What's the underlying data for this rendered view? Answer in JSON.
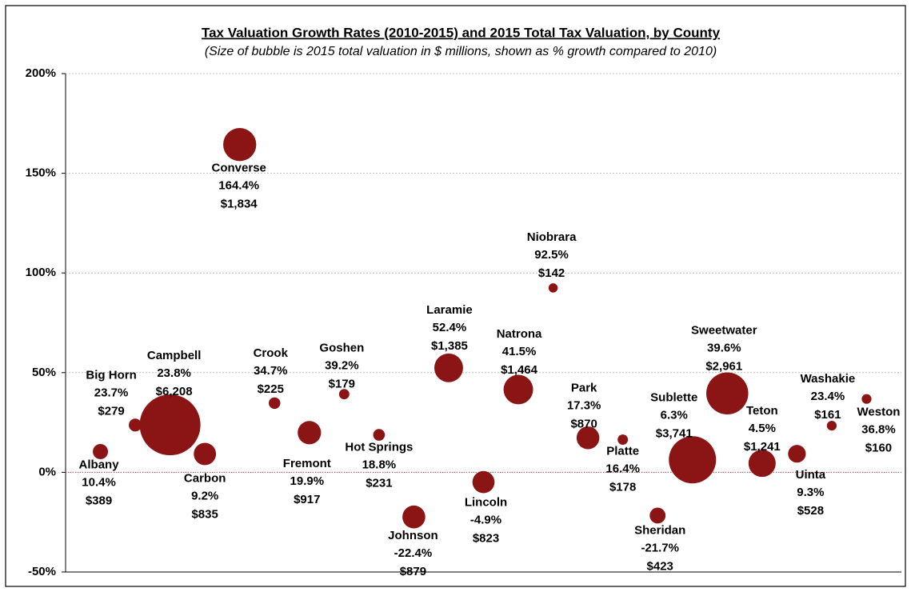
{
  "chart_data": {
    "type": "bubble",
    "title": "Tax Valuation Growth Rates (2010-2015) and 2015 Total Tax Valuation, by County",
    "subtitle": "(Size of bubble is 2015 total valuation in $ millions, shown as % growth compared to 2010)",
    "categories": [
      "Albany",
      "Big Horn",
      "Campbell",
      "Carbon",
      "Converse",
      "Crook",
      "Fremont",
      "Goshen",
      "Hot Springs",
      "Johnson",
      "Laramie",
      "Lincoln",
      "Natrona",
      "Niobrara",
      "Park",
      "Platte",
      "Sheridan",
      "Sublette",
      "Sweetwater",
      "Teton",
      "Uinta",
      "Washakie",
      "Weston"
    ],
    "values": [
      10.4,
      23.7,
      23.8,
      9.2,
      164.4,
      34.7,
      19.9,
      39.2,
      18.8,
      -22.4,
      52.4,
      -4.9,
      41.5,
      92.5,
      17.3,
      16.4,
      -21.7,
      6.3,
      39.6,
      4.5,
      9.3,
      23.4,
      36.8
    ],
    "value_labels": [
      "10.4%",
      "23.7%",
      "23.8%",
      "9.2%",
      "164.4%",
      "34.7%",
      "19.9%",
      "39.2%",
      "18.8%",
      "-22.4%",
      "52.4%",
      "-4.9%",
      "41.5%",
      "92.5%",
      "17.3%",
      "16.4%",
      "-21.7%",
      "6.3%",
      "39.6%",
      "4.5%",
      "9.3%",
      "23.4%",
      "36.8%"
    ],
    "sizes": [
      389,
      279,
      6208,
      835,
      1834,
      225,
      917,
      179,
      231,
      879,
      1385,
      823,
      1464,
      142,
      870,
      178,
      423,
      3741,
      2961,
      1241,
      528,
      161,
      160
    ],
    "size_labels": [
      "$389",
      "$279",
      "$6,208",
      "$835",
      "$1,834",
      "$225",
      "$917",
      "$179",
      "$231",
      "$879",
      "$1,385",
      "$823",
      "$1,464",
      "$142",
      "$870",
      "$178",
      "$423",
      "$3,741",
      "$2,961",
      "$1,241",
      "$528",
      "$161",
      "$160"
    ],
    "color": "#8b1414",
    "ylim": [
      -50,
      200
    ],
    "yticks": [
      {
        "value": -50,
        "label": "-50%"
      },
      {
        "value": 0,
        "label": "0%"
      },
      {
        "value": 50,
        "label": "50%"
      },
      {
        "value": 100,
        "label": "100%"
      },
      {
        "value": 150,
        "label": "150%"
      },
      {
        "value": 200,
        "label": "200%"
      }
    ],
    "grid": true
  }
}
